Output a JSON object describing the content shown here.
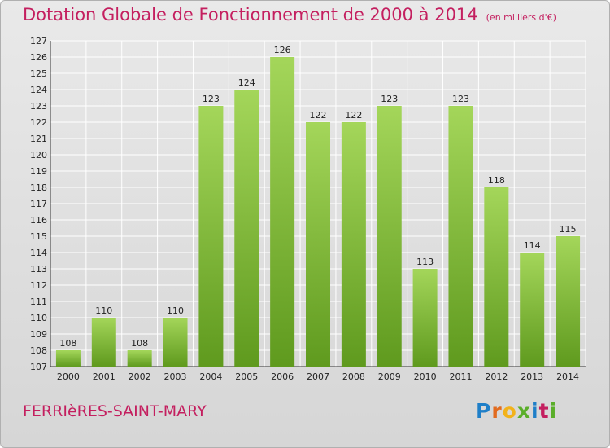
{
  "header": {
    "title": "Dotation Globale de Fonctionnement de 2000 à 2014",
    "subtitle": "(en milliers d'€)"
  },
  "footer": {
    "commune": "FERRIèRES-SAINT-MARY",
    "logo_text": "Proxiti"
  },
  "colors": {
    "bar_light": "#a4d65a",
    "bar_dark": "#5f9a1e",
    "title": "#c41f5f",
    "grid": "#ffffff"
  },
  "chart_data": {
    "type": "bar",
    "title": "Dotation Globale de Fonctionnement de 2000 à 2014",
    "subtitle": "(en milliers d'€)",
    "categories": [
      "2000",
      "2001",
      "2002",
      "2003",
      "2004",
      "2005",
      "2006",
      "2007",
      "2008",
      "2009",
      "2010",
      "2011",
      "2012",
      "2013",
      "2014"
    ],
    "values": [
      108,
      110,
      108,
      110,
      123,
      124,
      126,
      122,
      122,
      123,
      113,
      123,
      118,
      114,
      115
    ],
    "ylim": [
      107,
      127
    ],
    "yticks": [
      107,
      108,
      109,
      110,
      111,
      112,
      113,
      114,
      115,
      116,
      117,
      118,
      119,
      120,
      121,
      122,
      123,
      124,
      125,
      126,
      127
    ],
    "ytick_labels": [
      "107",
      "108",
      "109",
      "110",
      "111",
      "112",
      "113",
      "114",
      "115",
      "116",
      "117",
      "118",
      "119",
      "120",
      "121",
      "122",
      "123",
      "124",
      "125",
      "126",
      "127"
    ],
    "grid": true
  }
}
